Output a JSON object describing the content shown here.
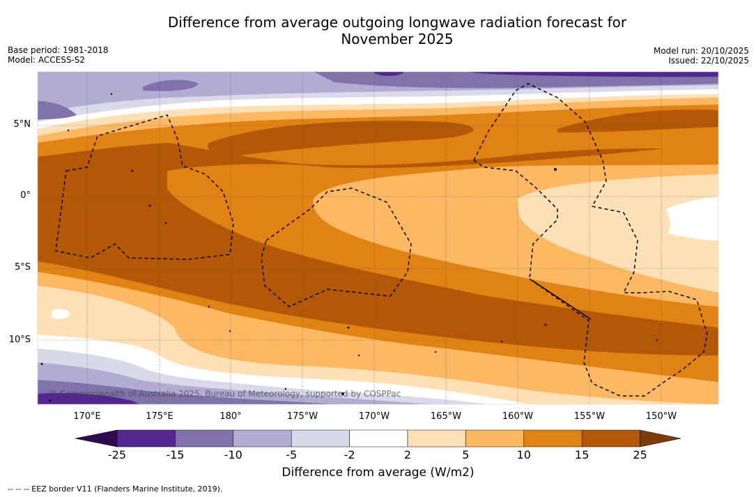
{
  "title": {
    "line1": "Difference from average outgoing longwave radiation forecast for",
    "line2": "November 2025"
  },
  "meta": {
    "base_period": "Base period: 1981-2018",
    "model": "Model: ACCESS-S2",
    "model_run": "Model run: 20/10/2025",
    "issued": "Issued: 22/10/2025"
  },
  "axes": {
    "lat_labels": [
      "5°N",
      "0°",
      "5°S",
      "10°S"
    ],
    "lon_labels": [
      "170°E",
      "175°E",
      "180°",
      "175°W",
      "170°W",
      "165°W",
      "160°W",
      "155°W",
      "150°W"
    ]
  },
  "colorbar": {
    "title": "Difference from average (W/m2)",
    "ticks": [
      "-25",
      "-15",
      "-10",
      "-5",
      "-2",
      "2",
      "5",
      "10",
      "15",
      "25"
    ],
    "colors": {
      "under": "#2e0a4f",
      "c1": "#54278f",
      "c2": "#8073ac",
      "c3": "#b2abd2",
      "c4": "#d8daeb",
      "c5": "#ffffff",
      "c6": "#fee0b6",
      "c7": "#fdb863",
      "c8": "#e08214",
      "c9": "#b35806",
      "over": "#7f3b08"
    }
  },
  "copyright": "© Commonwealth of Australia 2025, Bureau of Meteorology, supported by COSPPac",
  "footnote": "--  --  -- EEZ border V11 (Flanders Marine Institute, 2019)."
}
